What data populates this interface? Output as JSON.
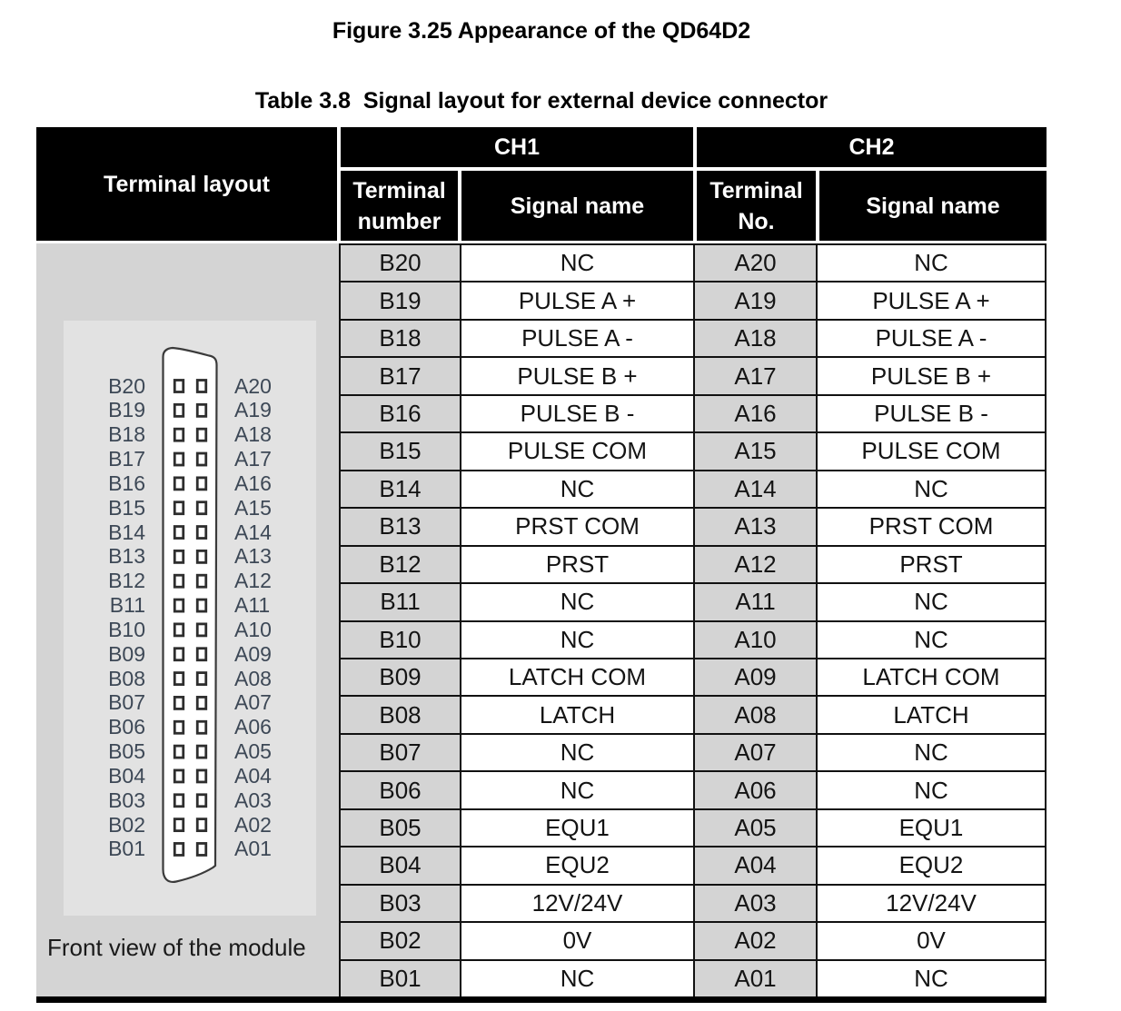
{
  "figure_title": "Figure 3.25 Appearance of the QD64D2",
  "table_title": "Table 3.8  Signal layout for external device connector",
  "header": {
    "terminal_layout": "Terminal layout",
    "ch1": "CH1",
    "ch2": "CH2",
    "ch1_terminal_line1": "Terminal",
    "ch1_terminal_line2": "number",
    "ch1_signal": "Signal name",
    "ch2_terminal_line1": "Terminal",
    "ch2_terminal_line2": "No.",
    "ch2_signal": "Signal name"
  },
  "diagram": {
    "left_pins": [
      "B20",
      "B19",
      "B18",
      "B17",
      "B16",
      "B15",
      "B14",
      "B13",
      "B12",
      "B11",
      "B10",
      "B09",
      "B08",
      "B07",
      "B06",
      "B05",
      "B04",
      "B03",
      "B02",
      "B01"
    ],
    "right_pins": [
      "A20",
      "A19",
      "A18",
      "A17",
      "A16",
      "A15",
      "A14",
      "A13",
      "A12",
      "A11",
      "A10",
      "A09",
      "A08",
      "A07",
      "A06",
      "A05",
      "A04",
      "A03",
      "A02",
      "A01"
    ],
    "caption": "Front view of the module"
  },
  "rows": [
    {
      "ch1_terminal": "B20",
      "ch1_signal": "NC",
      "ch2_terminal": "A20",
      "ch2_signal": "NC"
    },
    {
      "ch1_terminal": "B19",
      "ch1_signal": "PULSE A +",
      "ch2_terminal": "A19",
      "ch2_signal": "PULSE A +"
    },
    {
      "ch1_terminal": "B18",
      "ch1_signal": "PULSE A -",
      "ch2_terminal": "A18",
      "ch2_signal": "PULSE A -"
    },
    {
      "ch1_terminal": "B17",
      "ch1_signal": "PULSE B +",
      "ch2_terminal": "A17",
      "ch2_signal": "PULSE B +"
    },
    {
      "ch1_terminal": "B16",
      "ch1_signal": "PULSE B -",
      "ch2_terminal": "A16",
      "ch2_signal": "PULSE B -"
    },
    {
      "ch1_terminal": "B15",
      "ch1_signal": "PULSE COM",
      "ch2_terminal": "A15",
      "ch2_signal": "PULSE COM"
    },
    {
      "ch1_terminal": "B14",
      "ch1_signal": "NC",
      "ch2_terminal": "A14",
      "ch2_signal": "NC"
    },
    {
      "ch1_terminal": "B13",
      "ch1_signal": "PRST COM",
      "ch2_terminal": "A13",
      "ch2_signal": "PRST COM"
    },
    {
      "ch1_terminal": "B12",
      "ch1_signal": "PRST",
      "ch2_terminal": "A12",
      "ch2_signal": "PRST"
    },
    {
      "ch1_terminal": "B11",
      "ch1_signal": "NC",
      "ch2_terminal": "A11",
      "ch2_signal": "NC"
    },
    {
      "ch1_terminal": "B10",
      "ch1_signal": "NC",
      "ch2_terminal": "A10",
      "ch2_signal": "NC"
    },
    {
      "ch1_terminal": "B09",
      "ch1_signal": "LATCH COM",
      "ch2_terminal": "A09",
      "ch2_signal": "LATCH COM"
    },
    {
      "ch1_terminal": "B08",
      "ch1_signal": "LATCH",
      "ch2_terminal": "A08",
      "ch2_signal": "LATCH"
    },
    {
      "ch1_terminal": "B07",
      "ch1_signal": "NC",
      "ch2_terminal": "A07",
      "ch2_signal": "NC"
    },
    {
      "ch1_terminal": "B06",
      "ch1_signal": "NC",
      "ch2_terminal": "A06",
      "ch2_signal": "NC"
    },
    {
      "ch1_terminal": "B05",
      "ch1_signal": "EQU1",
      "ch2_terminal": "A05",
      "ch2_signal": "EQU1"
    },
    {
      "ch1_terminal": "B04",
      "ch1_signal": "EQU2",
      "ch2_terminal": "A04",
      "ch2_signal": "EQU2"
    },
    {
      "ch1_terminal": "B03",
      "ch1_signal": "12V/24V",
      "ch2_terminal": "A03",
      "ch2_signal": "12V/24V"
    },
    {
      "ch1_terminal": "B02",
      "ch1_signal": "0V",
      "ch2_terminal": "A02",
      "ch2_signal": "0V"
    },
    {
      "ch1_terminal": "B01",
      "ch1_signal": "NC",
      "ch2_terminal": "A01",
      "ch2_signal": "NC"
    }
  ],
  "colors": {
    "header_bg": "#000000",
    "header_text": "#ffffff",
    "terminal_cell_bg": "#d4d4d4",
    "signal_cell_bg": "#ffffff",
    "panel_outer_bg": "#d4d4d4",
    "panel_inner_bg": "#e2e2e2",
    "grid_line": "#111111",
    "pin_label_color": "#3d4856"
  }
}
